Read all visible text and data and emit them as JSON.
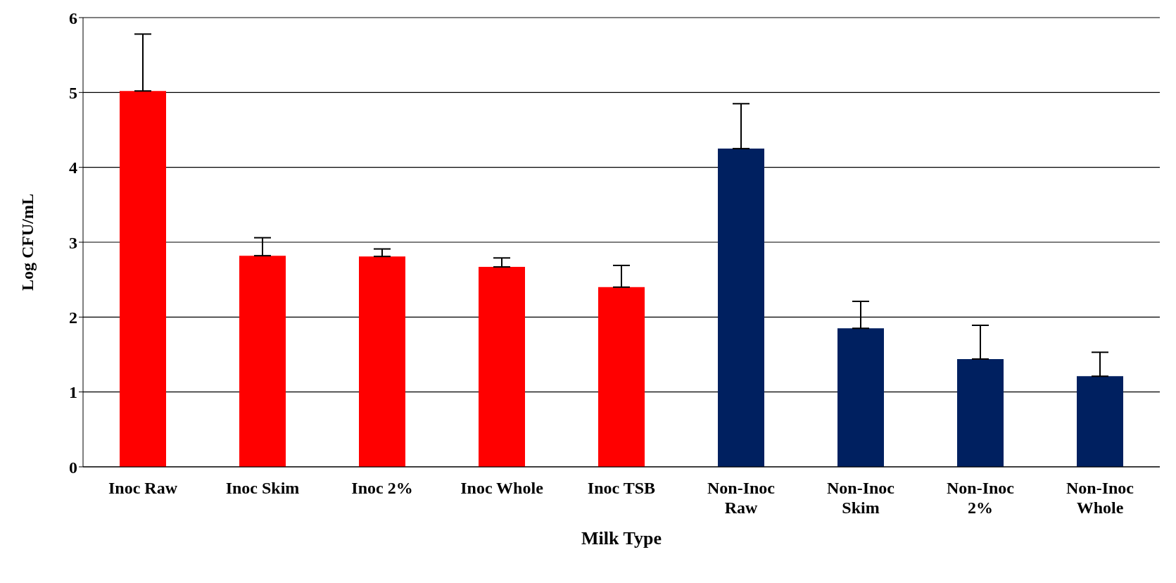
{
  "chart_data": {
    "type": "bar",
    "xlabel": "Milk Type",
    "ylabel": "Log CFU/mL",
    "categories": [
      "Inoc Raw",
      "Inoc Skim",
      "Inoc 2%",
      "Inoc Whole",
      "Inoc TSB",
      "Non-Inoc Raw",
      "Non-Inoc Skim",
      "Non-Inoc 2%",
      "Non-Inoc Whole"
    ],
    "values": [
      5.02,
      2.82,
      2.81,
      2.67,
      2.4,
      4.25,
      1.85,
      1.44,
      1.21
    ],
    "errors": [
      [
        5.02,
        5.78
      ],
      [
        2.82,
        3.06
      ],
      [
        2.81,
        2.91
      ],
      [
        2.67,
        2.79
      ],
      [
        2.4,
        2.69
      ],
      [
        4.25,
        4.85
      ],
      [
        1.85,
        2.21
      ],
      [
        1.44,
        1.89
      ],
      [
        1.21,
        1.53
      ]
    ],
    "colors": [
      "#ff0000",
      "#ff0000",
      "#ff0000",
      "#ff0000",
      "#ff0000",
      "#002060",
      "#002060",
      "#002060",
      "#002060"
    ],
    "ylim": [
      0,
      6
    ],
    "yticks": [
      0,
      1,
      2,
      3,
      4,
      5,
      6
    ],
    "grid": "y",
    "legend": false
  }
}
